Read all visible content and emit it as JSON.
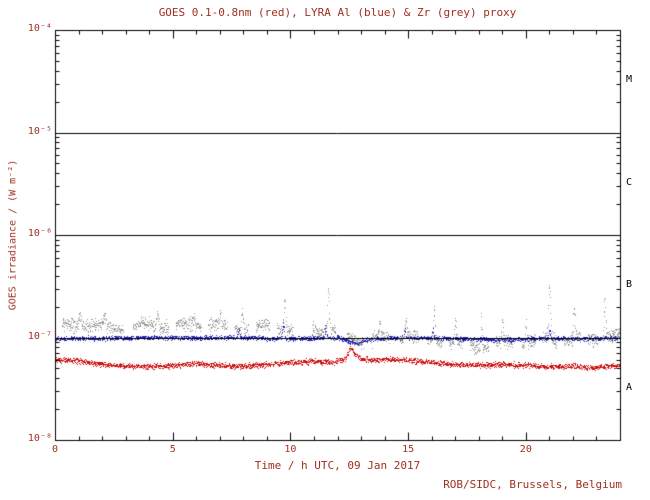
{
  "footer": {
    "credit": "ROB/SIDC, Brussels, Belgium"
  },
  "colors": {
    "background": "#ffffff",
    "text": "#a03020",
    "axis": "#000000",
    "band_label": "#000000",
    "goes_red": "#cc1111",
    "lyra_al_blue": "#2222bb",
    "lyra_zr_grey": "#9a9a9a"
  },
  "chart_data": {
    "type": "scatter",
    "title": "GOES 0.1-0.8nm (red), LYRA Al (blue) & Zr (grey) proxy",
    "xlabel": "Time / h UTC, 09 Jan 2017",
    "ylabel": "GOES irradiance / (W m⁻²)",
    "xlim": [
      0,
      24
    ],
    "ylim_log10": [
      -8,
      -4
    ],
    "grid": false,
    "legend": "none",
    "x_minor_step": 1,
    "xticks": [
      {
        "x": 0,
        "label": "0"
      },
      {
        "x": 5,
        "label": "5"
      },
      {
        "x": 10,
        "label": "10"
      },
      {
        "x": 15,
        "label": "15"
      },
      {
        "x": 20,
        "label": "20"
      }
    ],
    "yticks": [
      {
        "log10": -8,
        "label": "10⁻⁸"
      },
      {
        "log10": -7,
        "label": "10⁻⁷"
      },
      {
        "log10": -6,
        "label": "10⁻⁶"
      },
      {
        "log10": -5,
        "label": "10⁻⁵"
      },
      {
        "log10": -4,
        "label": "10⁻⁴"
      }
    ],
    "hlines_log10": [
      -5,
      -6,
      -7
    ],
    "band_labels": [
      {
        "label": "M",
        "log10_y": -4.5
      },
      {
        "label": "C",
        "log10_y": -5.5
      },
      {
        "label": "B",
        "log10_y": -6.5
      },
      {
        "label": "A",
        "log10_y": -7.5
      }
    ],
    "seed": 20170109,
    "series": [
      {
        "name": "GOES 0.1-0.8nm",
        "color_key": "goes_red",
        "dt": 0.01,
        "noise_log10": 0.013,
        "passes": 1,
        "point_size": 1,
        "baseline_log10": [
          [
            0,
            -7.21
          ],
          [
            1,
            -7.23
          ],
          [
            2,
            -7.26
          ],
          [
            3,
            -7.27
          ],
          [
            4,
            -7.28
          ],
          [
            5,
            -7.27
          ],
          [
            6,
            -7.25
          ],
          [
            7,
            -7.27
          ],
          [
            8,
            -7.28
          ],
          [
            9,
            -7.26
          ],
          [
            10,
            -7.24
          ],
          [
            11,
            -7.23
          ],
          [
            11.8,
            -7.24
          ],
          [
            12.3,
            -7.21
          ],
          [
            12.55,
            -7.1
          ],
          [
            12.9,
            -7.2
          ],
          [
            13.5,
            -7.22
          ],
          [
            14,
            -7.21
          ],
          [
            15,
            -7.22
          ],
          [
            16,
            -7.24
          ],
          [
            17,
            -7.26
          ],
          [
            18,
            -7.27
          ],
          [
            19,
            -7.26
          ],
          [
            20,
            -7.27
          ],
          [
            21,
            -7.28
          ],
          [
            22,
            -7.28
          ],
          [
            23,
            -7.29
          ],
          [
            24,
            -7.27
          ]
        ],
        "gaps": [],
        "spikes": []
      },
      {
        "name": "LYRA Al proxy",
        "color_key": "lyra_al_blue",
        "dt": 0.01,
        "noise_log10": 0.01,
        "passes": 1,
        "point_size": 1,
        "baseline_log10": [
          [
            0,
            -7.01
          ],
          [
            4,
            -7.0
          ],
          [
            8,
            -7.0
          ],
          [
            10,
            -7.01
          ],
          [
            12,
            -7.0
          ],
          [
            12.8,
            -7.06
          ],
          [
            13.4,
            -7.01
          ],
          [
            15,
            -7.0
          ],
          [
            17,
            -7.01
          ],
          [
            19,
            -7.02
          ],
          [
            21,
            -7.01
          ],
          [
            23,
            -7.01
          ],
          [
            24,
            -7.0
          ]
        ],
        "gaps": [],
        "spikes": [
          {
            "x": 7.8,
            "peak_log10": -6.9,
            "width": 0.07
          },
          {
            "x": 9.7,
            "peak_log10": -6.87,
            "width": 0.07
          },
          {
            "x": 11.5,
            "peak_log10": -6.88,
            "width": 0.07
          },
          {
            "x": 14.85,
            "peak_log10": -6.92,
            "width": 0.06
          },
          {
            "x": 16.05,
            "peak_log10": -6.93,
            "width": 0.06
          },
          {
            "x": 21.0,
            "peak_log10": -6.92,
            "width": 0.06
          }
        ]
      },
      {
        "name": "LYRA Zr proxy",
        "color_key": "lyra_zr_grey",
        "dt": 0.02,
        "noise_log10": 0.027,
        "passes": 2,
        "point_size": 1,
        "wiggle": {
          "amp": 0.03,
          "period": 1.7
        },
        "baseline_log10": [
          [
            0,
            -6.9
          ],
          [
            1,
            -6.86
          ],
          [
            2,
            -6.89
          ],
          [
            3,
            -6.91
          ],
          [
            4,
            -6.87
          ],
          [
            5,
            -6.89
          ],
          [
            6,
            -6.86
          ],
          [
            7,
            -6.89
          ],
          [
            8,
            -6.91
          ],
          [
            9,
            -6.89
          ],
          [
            10,
            -6.93
          ],
          [
            11,
            -6.91
          ],
          [
            12,
            -6.94
          ],
          [
            12.6,
            -7.01
          ],
          [
            13,
            -7.03
          ],
          [
            14,
            -7.0
          ],
          [
            15,
            -6.99
          ],
          [
            16,
            -7.03
          ],
          [
            17,
            -7.06
          ],
          [
            18,
            -7.09
          ],
          [
            19,
            -7.06
          ],
          [
            20,
            -7.05
          ],
          [
            21,
            -7.01
          ],
          [
            22,
            -7.03
          ],
          [
            23,
            -7.01
          ],
          [
            24,
            -6.96
          ]
        ],
        "gaps": [
          [
            0,
            0.3
          ],
          [
            2.9,
            3.3
          ],
          [
            4.8,
            5.1
          ],
          [
            6.2,
            6.5
          ],
          [
            7.3,
            7.6
          ],
          [
            8.2,
            8.5
          ],
          [
            9.1,
            9.4
          ],
          [
            10.1,
            10.9
          ],
          [
            11.9,
            12.4
          ],
          [
            13.1,
            13.4
          ],
          [
            14.2,
            14.6
          ],
          [
            15.4,
            15.8
          ],
          [
            16.4,
            16.7
          ],
          [
            17.3,
            17.6
          ],
          [
            18.4,
            18.7
          ],
          [
            19.4,
            19.8
          ],
          [
            20.4,
            20.7
          ],
          [
            21.3,
            21.6
          ],
          [
            22.3,
            22.6
          ],
          [
            23.05,
            23.2
          ]
        ],
        "spikes": [
          {
            "x": 1.05,
            "peak_log10": -6.73,
            "width": 0.09
          },
          {
            "x": 2.1,
            "peak_log10": -6.79,
            "width": 0.08
          },
          {
            "x": 4.35,
            "peak_log10": -6.73,
            "width": 0.09
          },
          {
            "x": 5.9,
            "peak_log10": -6.79,
            "width": 0.08
          },
          {
            "x": 7.0,
            "peak_log10": -6.76,
            "width": 0.08
          },
          {
            "x": 7.95,
            "peak_log10": -6.73,
            "width": 0.09
          },
          {
            "x": 9.75,
            "peak_log10": -6.61,
            "width": 0.09
          },
          {
            "x": 11.6,
            "peak_log10": -6.53,
            "width": 0.09
          },
          {
            "x": 13.8,
            "peak_log10": -6.86,
            "width": 0.07
          },
          {
            "x": 14.9,
            "peak_log10": -6.79,
            "width": 0.08
          },
          {
            "x": 16.1,
            "peak_log10": -6.73,
            "width": 0.09
          },
          {
            "x": 17.0,
            "peak_log10": -6.86,
            "width": 0.07
          },
          {
            "x": 18.1,
            "peak_log10": -6.81,
            "width": 0.07
          },
          {
            "x": 19.0,
            "peak_log10": -6.86,
            "width": 0.07
          },
          {
            "x": 20.0,
            "peak_log10": -6.83,
            "width": 0.07
          },
          {
            "x": 21.0,
            "peak_log10": -6.51,
            "width": 0.09
          },
          {
            "x": 22.05,
            "peak_log10": -6.71,
            "width": 0.09
          },
          {
            "x": 23.35,
            "peak_log10": -6.59,
            "width": 0.09
          }
        ]
      }
    ]
  }
}
